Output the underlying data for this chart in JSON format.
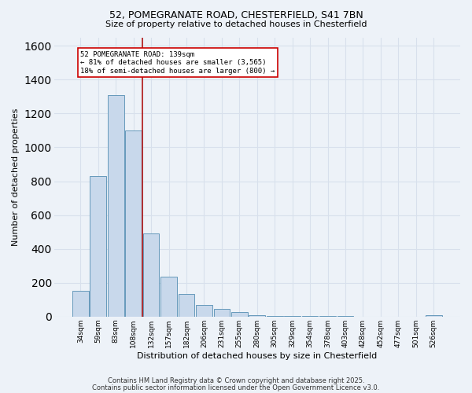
{
  "title1": "52, POMEGRANATE ROAD, CHESTERFIELD, S41 7BN",
  "title2": "Size of property relative to detached houses in Chesterfield",
  "xlabel": "Distribution of detached houses by size in Chesterfield",
  "ylabel": "Number of detached properties",
  "bar_color": "#c8d8eb",
  "bar_edge_color": "#6699bb",
  "background_color": "#edf2f8",
  "grid_color": "#d8e0ec",
  "categories": [
    "34sqm",
    "59sqm",
    "83sqm",
    "108sqm",
    "132sqm",
    "157sqm",
    "182sqm",
    "206sqm",
    "231sqm",
    "255sqm",
    "280sqm",
    "305sqm",
    "329sqm",
    "354sqm",
    "378sqm",
    "403sqm",
    "428sqm",
    "452sqm",
    "477sqm",
    "501sqm",
    "526sqm"
  ],
  "values": [
    150,
    830,
    1310,
    1100,
    490,
    235,
    135,
    70,
    45,
    25,
    10,
    5,
    5,
    3,
    2,
    2,
    1,
    1,
    1,
    1,
    10
  ],
  "red_line_x": 3.5,
  "annotation_title": "52 POMEGRANATE ROAD: 139sqm",
  "annotation_line1": "← 81% of detached houses are smaller (3,565)",
  "annotation_line2": "18% of semi-detached houses are larger (800) →",
  "footer1": "Contains HM Land Registry data © Crown copyright and database right 2025.",
  "footer2": "Contains public sector information licensed under the Open Government Licence v3.0.",
  "ylim": [
    0,
    1650
  ],
  "yticks": [
    0,
    200,
    400,
    600,
    800,
    1000,
    1200,
    1400,
    1600
  ]
}
